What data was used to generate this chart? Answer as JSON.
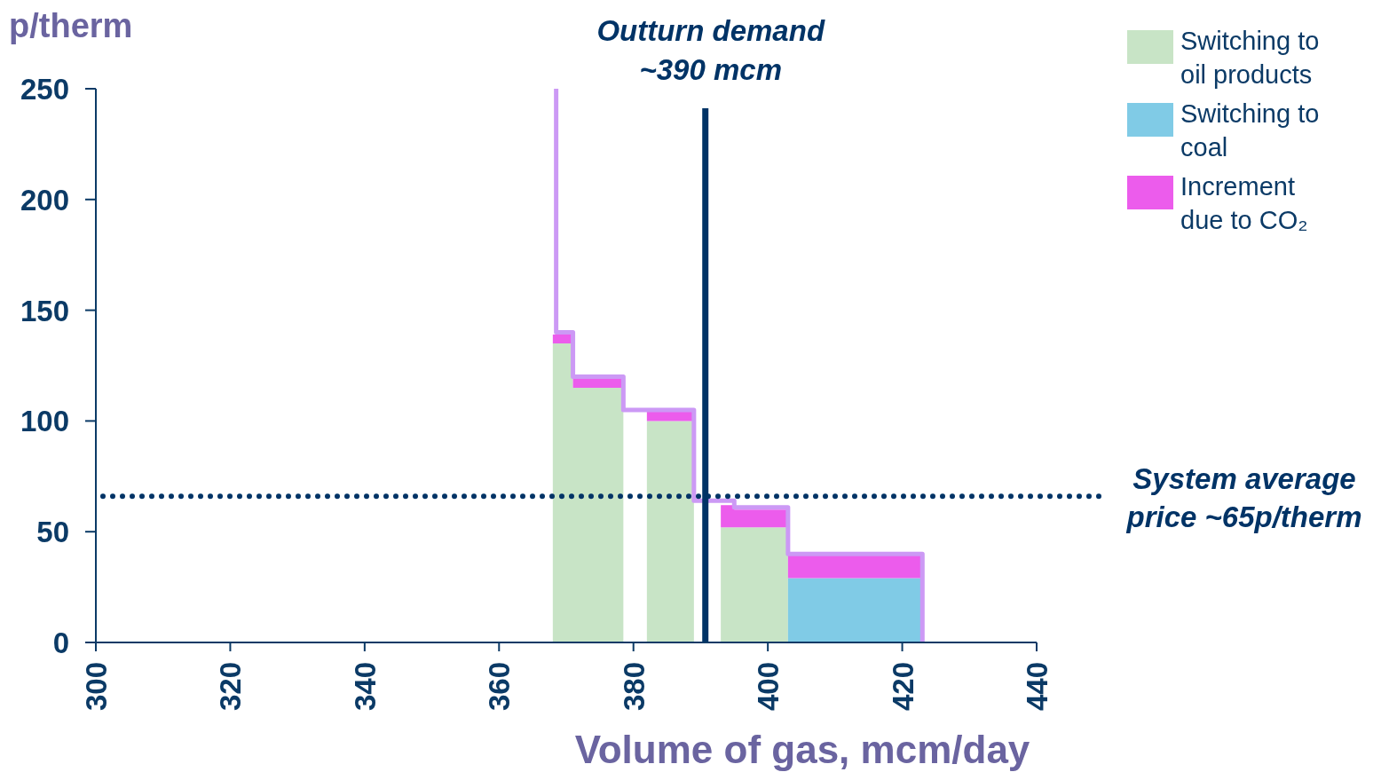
{
  "chart_data": {
    "type": "area",
    "stacked": true,
    "ylabel": "p/therm",
    "xlabel": "Volume of gas, mcm/day",
    "x": [
      368,
      371,
      371,
      378.5,
      380,
      382,
      389,
      391,
      393,
      395,
      395,
      403,
      403,
      423
    ],
    "series": [
      {
        "name": "Switching to oil products",
        "color": "#c8e4c6",
        "values": [
          135,
          135,
          115,
          115,
          null,
          100,
          100,
          null,
          52,
          52,
          52,
          52,
          null,
          null
        ]
      },
      {
        "name": "Switching to coal",
        "color": "#80cbe6",
        "values": [
          null,
          null,
          null,
          null,
          null,
          null,
          null,
          null,
          null,
          null,
          null,
          null,
          29,
          29
        ]
      },
      {
        "name": "Increment due to CO₂",
        "color": "#ec5cec",
        "values": [
          4,
          4,
          5,
          5,
          null,
          5,
          5,
          null,
          10,
          10,
          8,
          8,
          11,
          11
        ]
      },
      {
        "type": "line",
        "color": "#cc99f5",
        "x": [
          368.5,
          368.5,
          371,
          371,
          378.5,
          378.5,
          389,
          389,
          395,
          395,
          403,
          403,
          423,
          423
        ],
        "values": [
          250,
          140,
          140,
          120,
          120,
          105,
          105,
          64,
          64,
          61,
          61,
          40,
          40,
          0
        ]
      }
    ],
    "xlim": [
      300,
      440
    ],
    "xticks": [
      300,
      320,
      340,
      360,
      380,
      400,
      420,
      440
    ],
    "ylim": [
      0,
      250
    ],
    "yticks": [
      0,
      50,
      100,
      150,
      200,
      250
    ],
    "ref_lines": [
      {
        "axis": "x",
        "value": 390.7,
        "label": "Outturn demand ~390 mcm",
        "color": "#003366",
        "line_style": "solid"
      },
      {
        "axis": "y",
        "value": 66,
        "label": "System average price ~65p/therm",
        "color": "#003366",
        "line_style": "dotted"
      }
    ],
    "legend": "top right"
  }
}
